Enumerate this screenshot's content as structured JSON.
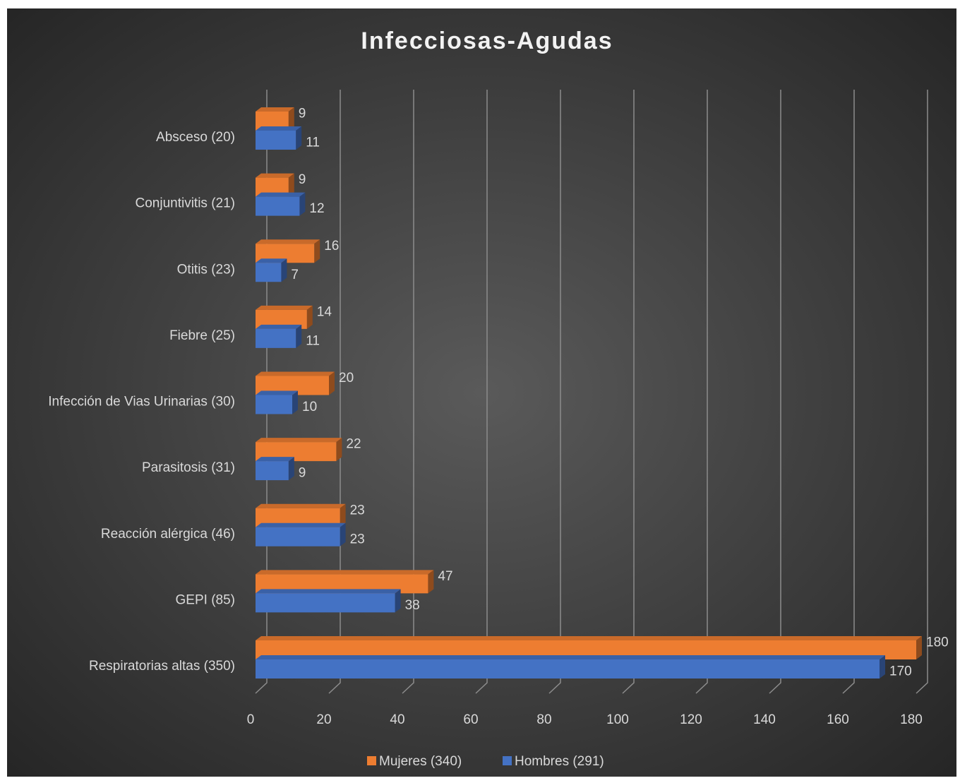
{
  "chart_data": {
    "type": "bar3d_horizontal",
    "title": "Infecciosas-Agudas",
    "categories": [
      "Absceso (20)",
      "Conjuntivitis (21)",
      "Otitis (23)",
      "Fiebre (25)",
      "Infección de Vias Urinarias (30)",
      "Parasitosis (31)",
      "Reacción alérgica (46)",
      "GEPI (85)",
      "Respiratorias altas (350)"
    ],
    "series": [
      {
        "name": "Mujeres (340)",
        "color": "#ed7d31",
        "values": [
          9,
          9,
          16,
          14,
          20,
          22,
          23,
          47,
          180
        ]
      },
      {
        "name": "Hombres (291)",
        "color": "#4472c4",
        "values": [
          11,
          12,
          7,
          11,
          10,
          9,
          23,
          38,
          170
        ]
      }
    ],
    "xlim": [
      0,
      180
    ],
    "xticks": [
      0,
      20,
      40,
      60,
      80,
      100,
      120,
      140,
      160,
      180
    ],
    "grid": true,
    "legend": "bottom"
  }
}
